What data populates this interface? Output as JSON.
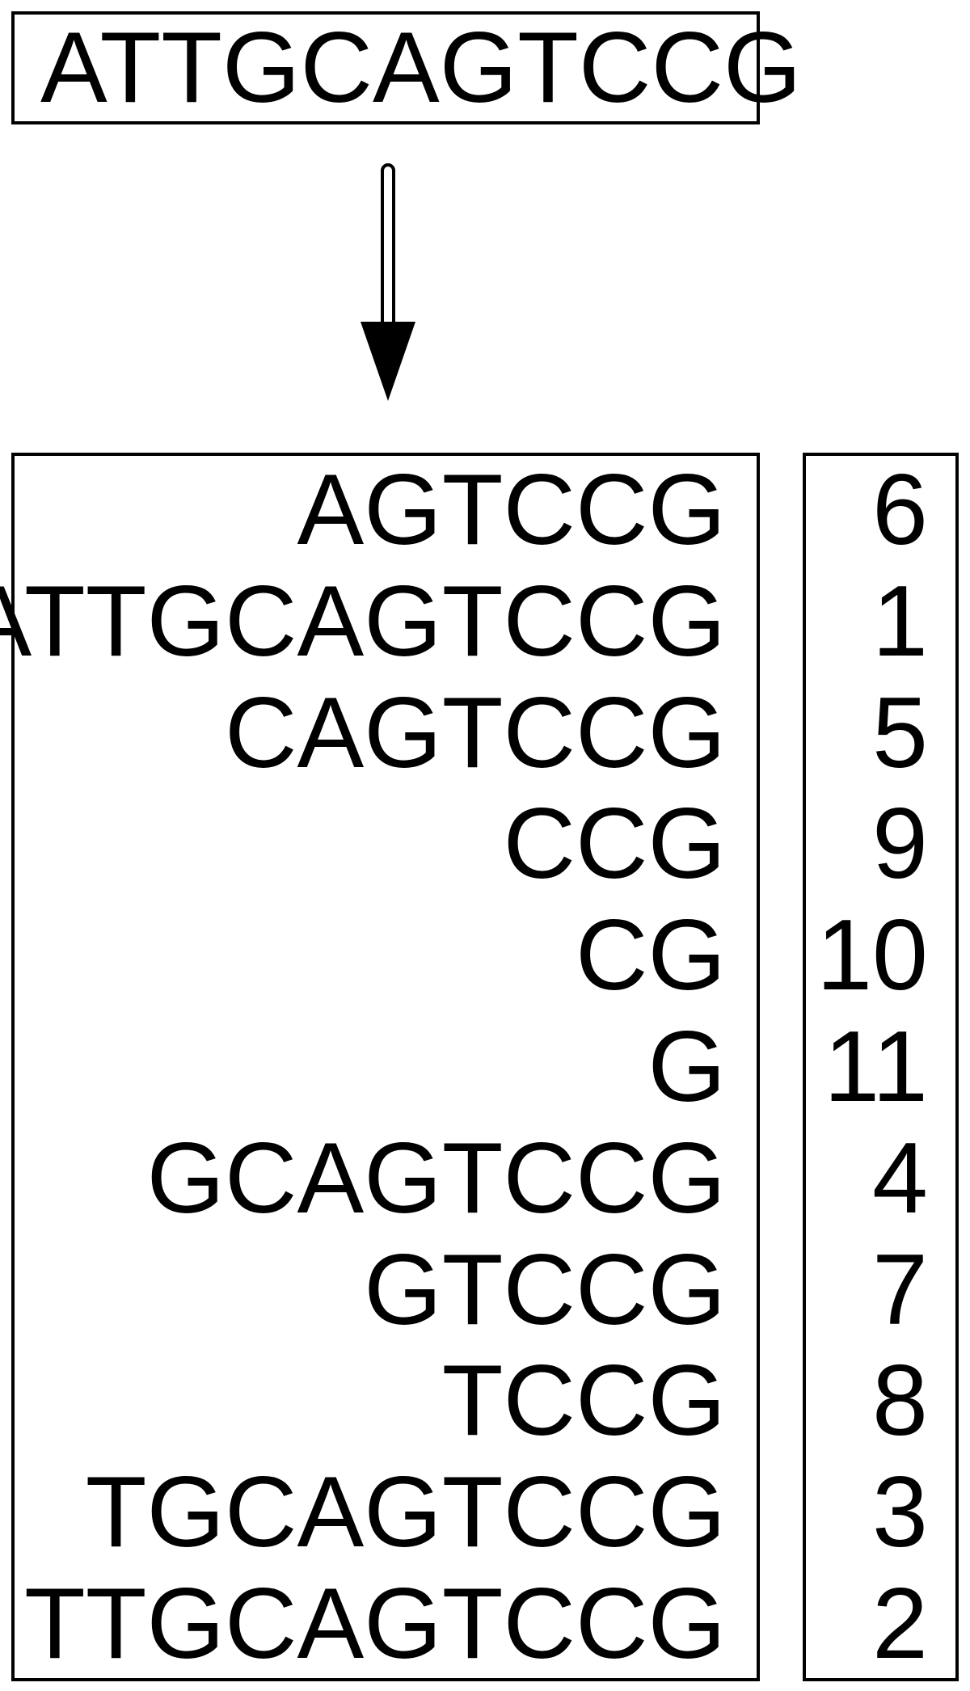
{
  "input": {
    "sequence": "ATTGCAGTCCG"
  },
  "suffix_array": {
    "rows": [
      {
        "suffix": "AGTCCG",
        "index": "6"
      },
      {
        "suffix": "ATTGCAGTCCG",
        "index": "1"
      },
      {
        "suffix": "CAGTCCG",
        "index": "5"
      },
      {
        "suffix": "CCG",
        "index": "9"
      },
      {
        "suffix": "CG",
        "index": "10"
      },
      {
        "suffix": "G",
        "index": "11"
      },
      {
        "suffix": "GCAGTCCG",
        "index": "4"
      },
      {
        "suffix": "GTCCG",
        "index": "7"
      },
      {
        "suffix": "TCCG",
        "index": "8"
      },
      {
        "suffix": "TGCAGTCCG",
        "index": "3"
      },
      {
        "suffix": "TTGCAGTCCG",
        "index": "2"
      }
    ]
  },
  "icons": {
    "arrow": "down-arrow-icon"
  },
  "colors": {
    "stroke": "#000000",
    "background": "#ffffff"
  }
}
